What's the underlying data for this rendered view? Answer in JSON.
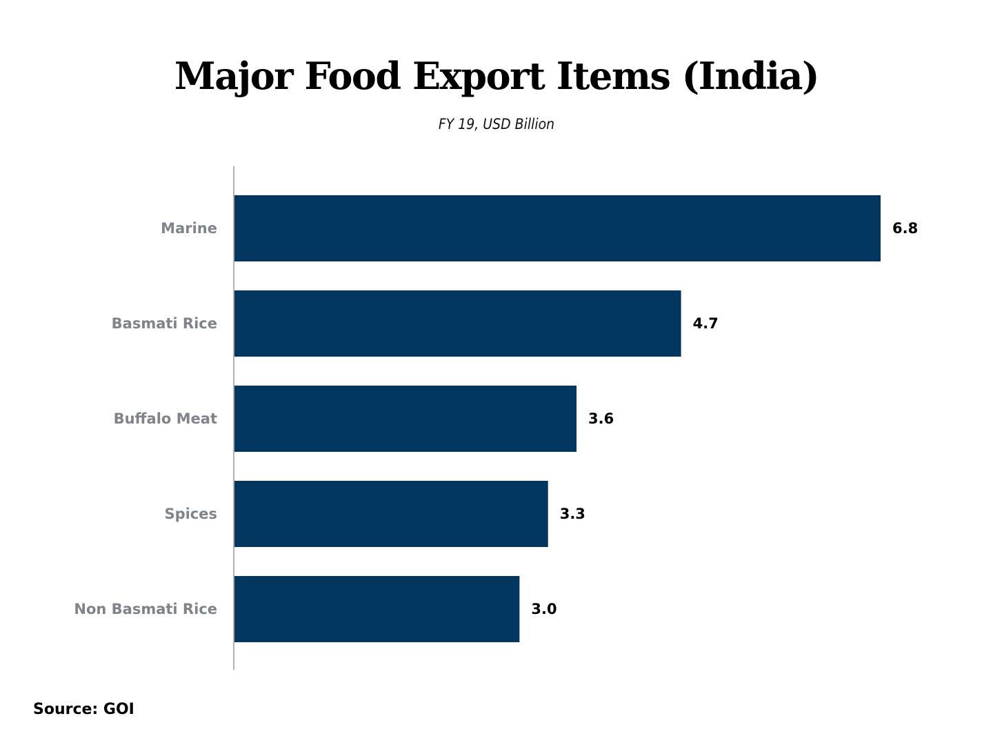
{
  "chart_data": {
    "type": "bar",
    "orientation": "horizontal",
    "title": "Major Food Export Items (India)",
    "subtitle": "FY 19, USD Billion",
    "categories": [
      "Marine",
      "Basmati Rice",
      "Buffalo Meat",
      "Spices",
      "Non Basmati Rice"
    ],
    "values": [
      6.8,
      4.7,
      3.6,
      3.3,
      3.0
    ],
    "value_labels": [
      "6.8",
      "4.7",
      "3.6",
      "3.3",
      "3.0"
    ],
    "xlim": [
      0,
      6.8
    ],
    "grid": false,
    "legend": "none",
    "bar_color": "#02365e",
    "axis_color": "#b0b0b0"
  },
  "source": "Source: GOI"
}
